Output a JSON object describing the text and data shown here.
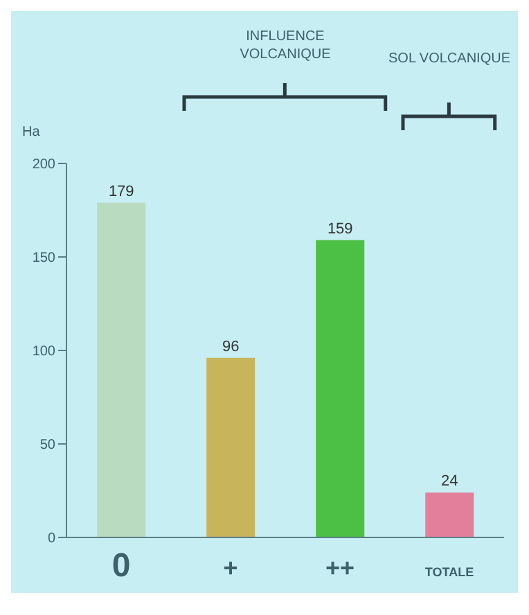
{
  "chart_data": {
    "type": "bar",
    "ylabel": "Ha",
    "categories": [
      "0",
      "+",
      "++",
      "TOTALE"
    ],
    "values": [
      179,
      96,
      159,
      24
    ],
    "colors": [
      "#b9dcc0",
      "#c8b45a",
      "#4cbf45",
      "#e47f9b"
    ],
    "ylim": [
      0,
      200
    ],
    "yticks": [
      0,
      50,
      100,
      150,
      200
    ],
    "grid": false,
    "legend": false,
    "data_labels": true,
    "annotations": [
      "INFLUENCE VOLCANIQUE",
      "SOL VOLCANIQUE"
    ]
  }
}
